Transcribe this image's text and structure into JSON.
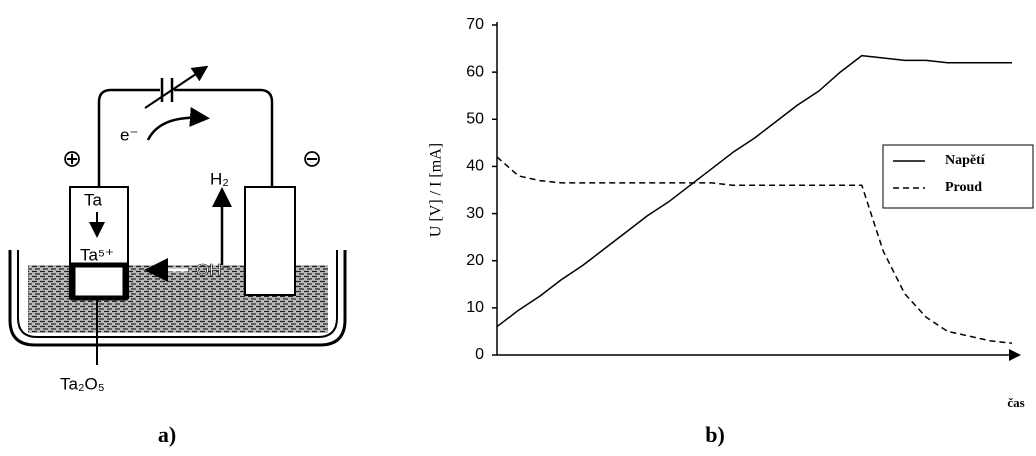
{
  "diagram": {
    "labels": {
      "plus": "⊕",
      "minus": "⊖",
      "electron": "e⁻",
      "metal": "Ta",
      "ion": "Ta⁵⁺",
      "hydrogen": "H₂",
      "hydroxide": "OH⁻",
      "oxide": "Ta₂O₅"
    },
    "caption": "a)"
  },
  "chart_data": {
    "type": "line",
    "caption": "b)",
    "y_label": "U [V] / I [mA]",
    "x_label": "čas",
    "categories": [
      null,
      null,
      null,
      null,
      null,
      null,
      null,
      null,
      null,
      null,
      null,
      null,
      null,
      null,
      null,
      null,
      null,
      null,
      null,
      null,
      null,
      null,
      null,
      null,
      null
    ],
    "series": [
      {
        "name": "Napětí",
        "color": "#000000",
        "line_style": "solid",
        "values": [
          6,
          9.5,
          12.5,
          16,
          19,
          22.5,
          26,
          29.5,
          32.5,
          36,
          39.5,
          43,
          46,
          49.5,
          53,
          56,
          60,
          63.5,
          63,
          62.5,
          62.5,
          62,
          62,
          62,
          62
        ]
      },
      {
        "name": "Proud",
        "color": "#000000",
        "line_style": "dashed",
        "values": [
          42,
          38,
          37,
          36.5,
          36.5,
          36.5,
          36.5,
          36.5,
          36.5,
          36.5,
          36.5,
          36,
          36,
          36,
          36,
          36,
          36,
          36,
          22,
          13,
          8,
          5,
          4,
          3,
          2.5
        ]
      }
    ],
    "ylim": [
      0,
      70
    ],
    "yticks": [
      0,
      10,
      20,
      30,
      40,
      50,
      60,
      70
    ],
    "grid": false,
    "legend": "right"
  }
}
